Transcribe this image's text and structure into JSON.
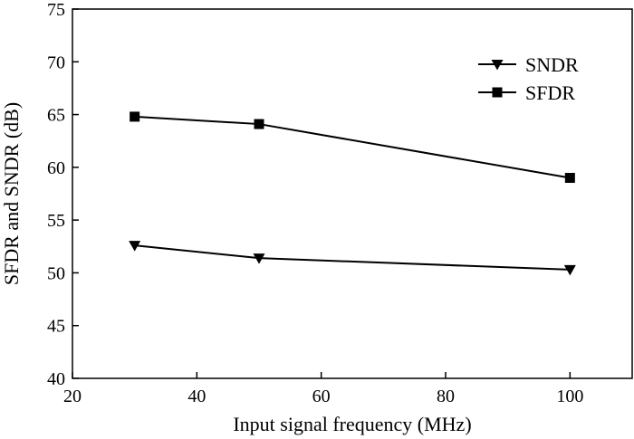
{
  "chart_data": {
    "type": "line",
    "title": "",
    "xlabel": "Input signal frequency (MHz)",
    "ylabel": "SFDR and SNDR (dB)",
    "xlim": [
      20,
      110
    ],
    "ylim": [
      40,
      75
    ],
    "xticks": [
      20,
      40,
      60,
      80,
      100
    ],
    "yticks": [
      40,
      45,
      50,
      55,
      60,
      65,
      70,
      75
    ],
    "grid": false,
    "legend_position": "top-right",
    "series": [
      {
        "name": "SNDR",
        "marker": "triangle-down",
        "color": "#000000",
        "x": [
          30,
          50,
          100
        ],
        "y": [
          52.6,
          51.4,
          50.3
        ]
      },
      {
        "name": "SFDR",
        "marker": "square",
        "color": "#000000",
        "x": [
          30,
          50,
          100
        ],
        "y": [
          64.8,
          64.1,
          59.0
        ]
      }
    ]
  }
}
